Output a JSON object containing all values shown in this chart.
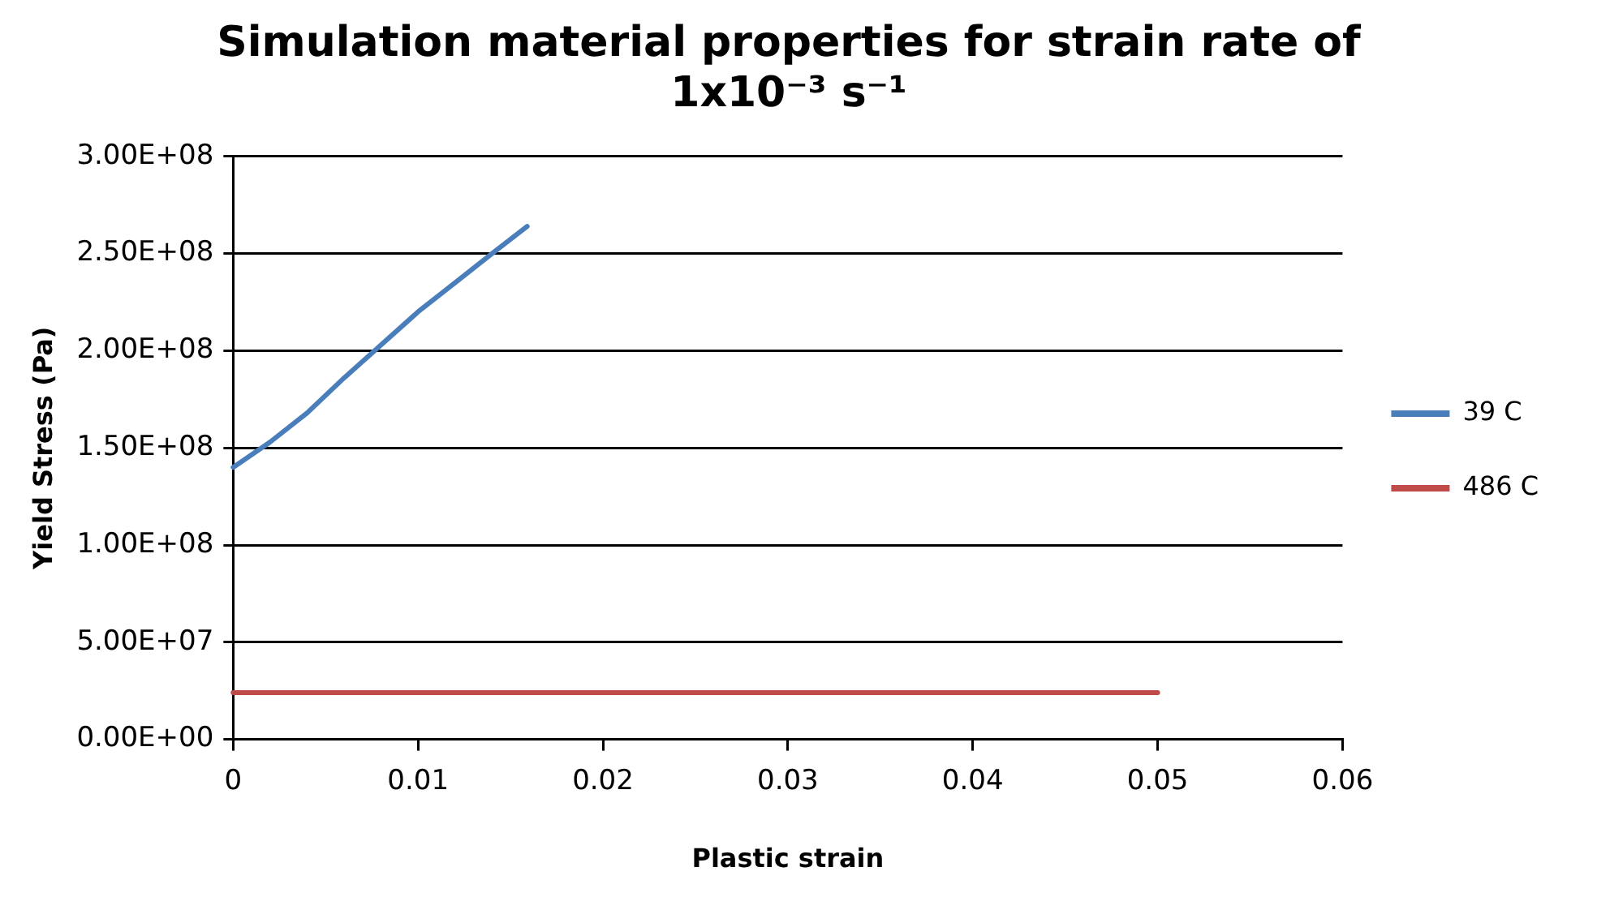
{
  "chart_data": {
    "type": "line",
    "title": "Simulation material properties for strain rate of 1x10⁻³ s⁻¹",
    "xlabel": "Plastic strain",
    "ylabel": "Yield Stress (Pa)",
    "series": [
      {
        "name": "39 C",
        "color": "#4a7ebb",
        "x": [
          0,
          0.002,
          0.004,
          0.006,
          0.008,
          0.01,
          0.012,
          0.014,
          0.0159
        ],
        "values": [
          140000000.0,
          153000000.0,
          168000000.0,
          186000000.0,
          203000000.0,
          220000000.0,
          235000000.0,
          250000000.0,
          264000000.0
        ]
      },
      {
        "name": "486 C",
        "color": "#be4b48",
        "x": [
          0,
          0.05
        ],
        "values": [
          24000000.0,
          24000000.0
        ]
      }
    ],
    "xlim": [
      0,
      0.06
    ],
    "xticks": [
      0,
      0.01,
      0.02,
      0.03,
      0.04,
      0.05,
      0.06
    ],
    "ylim": [
      0,
      300000000.0
    ],
    "yticks": [
      {
        "value": 0,
        "label": "0.00E+00"
      },
      {
        "value": 50000000.0,
        "label": "5.00E+07"
      },
      {
        "value": 100000000.0,
        "label": "1.00E+08"
      },
      {
        "value": 150000000.0,
        "label": "1.50E+08"
      },
      {
        "value": 200000000.0,
        "label": "2.00E+08"
      },
      {
        "value": 250000000.0,
        "label": "2.50E+08"
      },
      {
        "value": 300000000.0,
        "label": "3.00E+08"
      }
    ],
    "grid": "y",
    "legend": "right",
    "marker": "none",
    "line_style": "solid"
  }
}
